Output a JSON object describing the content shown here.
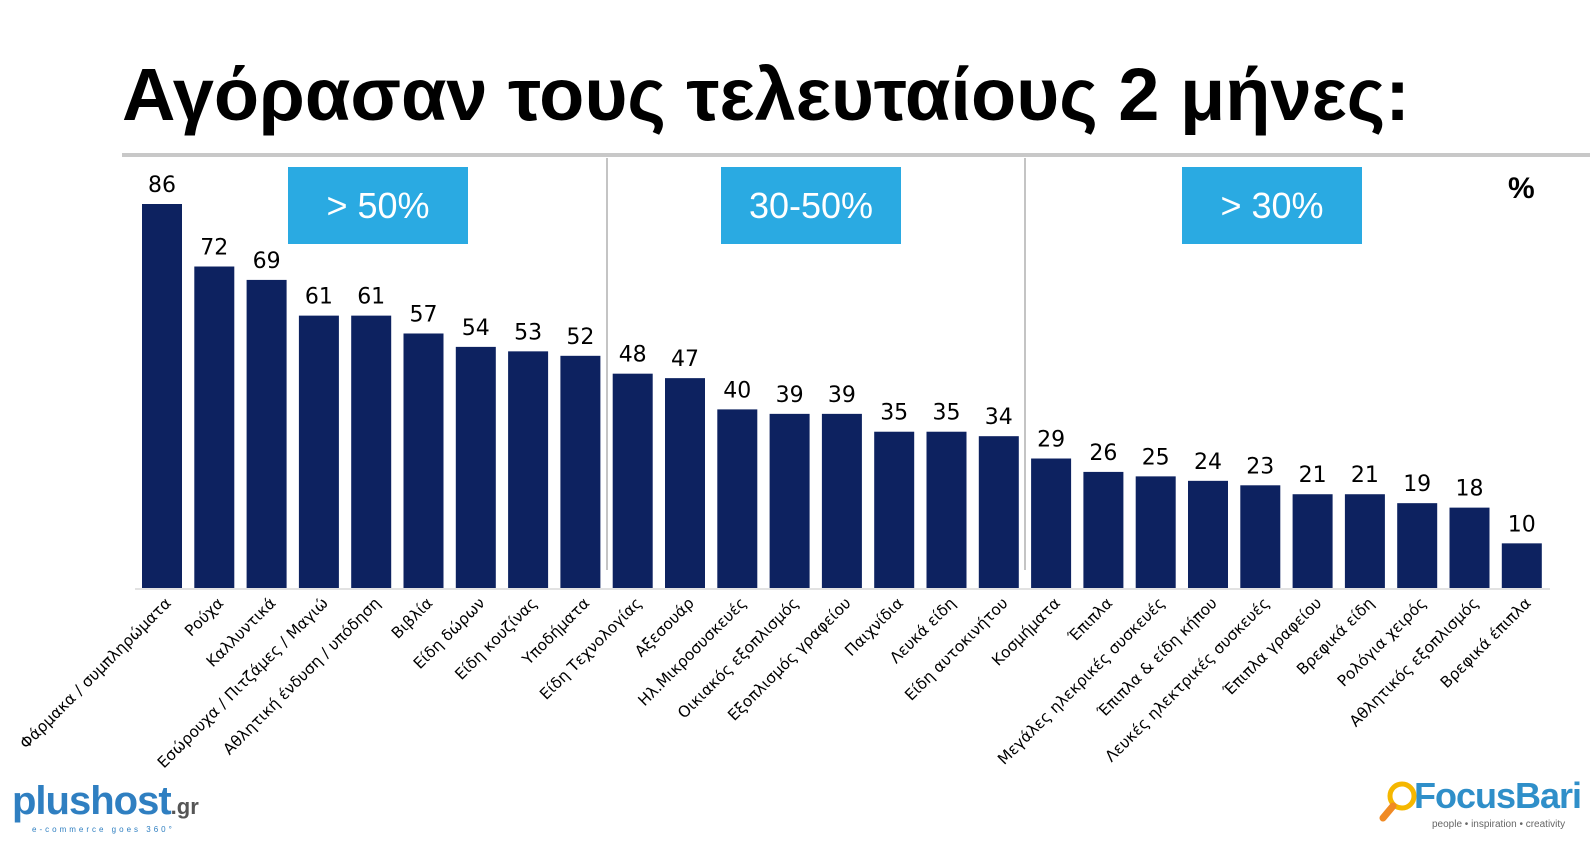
{
  "title": "Αγόρασαν τους τελευταίους 2 μήνες:",
  "unit": "%",
  "groups": [
    {
      "label": "> 50%"
    },
    {
      "label": "30-50%"
    },
    {
      "label": "> 30%"
    }
  ],
  "colors": {
    "bar": "#0d2260",
    "box": "#2aaae2",
    "divider": "#b0b0b0"
  },
  "logos": {
    "left": {
      "name": "plushost",
      "tld": ".gr",
      "tagline": "e-commerce goes 360°"
    },
    "right": {
      "name": "FocusBari",
      "tagline": "people • inspiration • creativity"
    }
  },
  "chart_data": {
    "type": "bar",
    "title": "Αγόρασαν τους τελευταίους 2 μήνες:",
    "ylabel": "%",
    "xlabel": "",
    "ylim": [
      0,
      86
    ],
    "grid": false,
    "categories": [
      "Φάρμακα / συμπληρώματα",
      "Ρούχα",
      "Καλλυντικά",
      "Εσώρουχα / Πιτζάμες / Μαγιώ",
      "Αθλητική ένδυση / υπόδηση",
      "Βιβλία",
      "Είδη δώρων",
      "Είδη κουζίνας",
      "Υποδήματα",
      "Είδη Τεχνολογίας",
      "Αξεσουάρ",
      "Ηλ.Μικροσυσκευές",
      "Οικιακός εξοπλισμός",
      "Εξοπλισμός γραφείου",
      "Παιχνίδια",
      "Λευκά είδη",
      "Είδη αυτοκινήτου",
      "Κοσμήματα",
      "Έπιπλα",
      "Μεγάλες ηλεκρικές συσκευές",
      "Έπιπλα & είδη κήπου",
      "Λευκές ηλεκτρικές συσκευές",
      "Έπιπλα γραφείου",
      "Βρεφικά είδη",
      "Ρολόγια χειρός",
      "Αθλητικός εξοπλισμός",
      "Βρεφικά έπιπλα"
    ],
    "values": [
      86,
      72,
      69,
      61,
      61,
      57,
      54,
      53,
      52,
      48,
      47,
      40,
      39,
      39,
      35,
      35,
      34,
      29,
      26,
      25,
      24,
      23,
      21,
      21,
      19,
      18,
      10
    ]
  }
}
